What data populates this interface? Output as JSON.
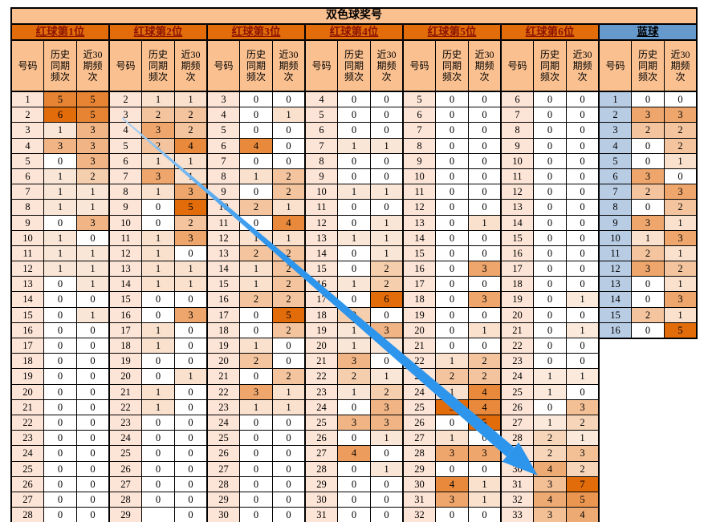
{
  "title": "双色球奖号",
  "subheaders": {
    "number": "号码",
    "hist": "历史同期频次",
    "last30": "近30期频次"
  },
  "colors": {
    "accent_max": "#E26B0A",
    "title_bg": "#FAC090",
    "subhead_bg": "#FAC090",
    "red_header_bg": "#E26B0A",
    "red_header_text": "#8B1500",
    "blue_header_bg": "#6699CC",
    "blue_header_text": "#000000",
    "red_number_bg": "#FCE4D6",
    "blue_number_bg": "#B8CCE4",
    "arrow_color_start": "#A8D2F5",
    "arrow_color_end": "#2E95EC"
  },
  "annotation": {
    "name": "big-diagonal-arrow",
    "description": "blue tapered arrow drawn across table"
  },
  "groups": [
    {
      "header": "红球第1位",
      "type": "red",
      "numbers": [
        1,
        2,
        3,
        4,
        5,
        6,
        7,
        8,
        9,
        10,
        11,
        12,
        13,
        14,
        15,
        16,
        17,
        18,
        19,
        20,
        21,
        22,
        23,
        24,
        25,
        26,
        27,
        28
      ],
      "hist": [
        5,
        6,
        1,
        3,
        0,
        1,
        1,
        1,
        0,
        1,
        1,
        1,
        0,
        0,
        0,
        0,
        0,
        0,
        0,
        0,
        0,
        0,
        0,
        0,
        0,
        0,
        0,
        0
      ],
      "last30": [
        5,
        5,
        3,
        3,
        3,
        2,
        1,
        1,
        3,
        0,
        1,
        1,
        1,
        0,
        1,
        0,
        0,
        0,
        0,
        0,
        0,
        0,
        0,
        0,
        0,
        0,
        0,
        0
      ]
    },
    {
      "header": "红球第2位",
      "type": "red",
      "numbers": [
        2,
        3,
        4,
        5,
        6,
        7,
        8,
        9,
        10,
        11,
        12,
        13,
        14,
        15,
        16,
        17,
        18,
        19,
        20,
        21,
        22,
        23,
        24,
        25,
        26,
        27,
        28,
        29
      ],
      "hist": [
        1,
        2,
        3,
        2,
        1,
        3,
        1,
        0,
        0,
        1,
        1,
        1,
        1,
        0,
        0,
        1,
        1,
        0,
        0,
        1,
        1,
        0,
        0,
        0,
        0,
        0,
        0,
        ""
      ],
      "last30": [
        1,
        2,
        2,
        4,
        1,
        1,
        3,
        5,
        2,
        3,
        0,
        1,
        1,
        0,
        3,
        0,
        0,
        0,
        1,
        0,
        0,
        0,
        0,
        0,
        0,
        0,
        0,
        0
      ]
    },
    {
      "header": "红球第3位",
      "type": "red",
      "numbers": [
        3,
        4,
        5,
        6,
        7,
        8,
        9,
        10,
        11,
        12,
        13,
        14,
        15,
        16,
        17,
        18,
        19,
        20,
        21,
        22,
        23,
        24,
        25,
        26,
        27,
        28,
        29,
        30
      ],
      "hist": [
        0,
        0,
        0,
        4,
        0,
        1,
        0,
        2,
        0,
        1,
        2,
        1,
        1,
        2,
        0,
        0,
        1,
        2,
        0,
        3,
        1,
        0,
        0,
        0,
        0,
        0,
        0,
        0
      ],
      "last30": [
        0,
        1,
        0,
        0,
        0,
        2,
        2,
        1,
        4,
        1,
        2,
        2,
        2,
        2,
        5,
        2,
        0,
        0,
        2,
        1,
        1,
        0,
        0,
        0,
        0,
        0,
        0,
        0
      ]
    },
    {
      "header": "红球第4位",
      "type": "red",
      "numbers": [
        4,
        5,
        6,
        7,
        8,
        9,
        10,
        11,
        12,
        13,
        14,
        15,
        16,
        17,
        18,
        19,
        20,
        21,
        22,
        23,
        24,
        25,
        26,
        27,
        28,
        29,
        30,
        31
      ],
      "hist": [
        0,
        0,
        0,
        1,
        0,
        0,
        1,
        0,
        0,
        1,
        0,
        0,
        1,
        0,
        2,
        1,
        1,
        3,
        2,
        1,
        0,
        3,
        0,
        4,
        0,
        0,
        0,
        0
      ],
      "last30": [
        0,
        0,
        0,
        1,
        0,
        0,
        1,
        0,
        1,
        1,
        1,
        2,
        2,
        6,
        0,
        3,
        1,
        0,
        1,
        2,
        3,
        3,
        1,
        0,
        1,
        0,
        0,
        0
      ]
    },
    {
      "header": "红球第5位",
      "type": "red",
      "numbers": [
        5,
        6,
        7,
        8,
        9,
        10,
        11,
        12,
        13,
        14,
        15,
        16,
        17,
        18,
        19,
        20,
        21,
        22,
        23,
        24,
        25,
        26,
        27,
        28,
        29,
        30,
        31,
        32
      ],
      "hist": [
        0,
        0,
        0,
        0,
        0,
        0,
        0,
        0,
        0,
        0,
        0,
        0,
        0,
        0,
        0,
        0,
        0,
        1,
        2,
        1,
        5,
        0,
        1,
        3,
        0,
        4,
        3,
        0
      ],
      "last30": [
        0,
        0,
        0,
        0,
        0,
        0,
        0,
        0,
        1,
        0,
        0,
        3,
        0,
        3,
        0,
        1,
        0,
        2,
        2,
        4,
        4,
        5,
        0,
        3,
        0,
        1,
        1,
        0
      ]
    },
    {
      "header": "红球第6位",
      "type": "red",
      "numbers": [
        6,
        7,
        8,
        9,
        10,
        11,
        12,
        13,
        14,
        15,
        16,
        17,
        18,
        19,
        20,
        21,
        22,
        23,
        24,
        25,
        26,
        27,
        28,
        29,
        30,
        31,
        32,
        33
      ],
      "hist": [
        0,
        0,
        0,
        0,
        0,
        0,
        0,
        0,
        0,
        0,
        0,
        0,
        0,
        0,
        0,
        0,
        0,
        0,
        1,
        1,
        0,
        1,
        2,
        2,
        4,
        3,
        4,
        3
      ],
      "last30": [
        0,
        0,
        0,
        0,
        0,
        0,
        0,
        0,
        0,
        0,
        0,
        0,
        0,
        1,
        0,
        1,
        0,
        0,
        1,
        0,
        3,
        2,
        1,
        3,
        2,
        7,
        5,
        4
      ]
    },
    {
      "header": "蓝球",
      "type": "blue",
      "numbers": [
        1,
        2,
        3,
        4,
        5,
        6,
        7,
        8,
        9,
        10,
        11,
        12,
        13,
        14,
        15,
        16
      ],
      "hist": [
        0,
        3,
        2,
        0,
        0,
        3,
        2,
        0,
        3,
        1,
        2,
        3,
        0,
        0,
        2,
        0
      ],
      "last30": [
        0,
        3,
        2,
        2,
        1,
        0,
        3,
        2,
        1,
        3,
        1,
        2,
        1,
        3,
        1,
        5
      ]
    }
  ]
}
